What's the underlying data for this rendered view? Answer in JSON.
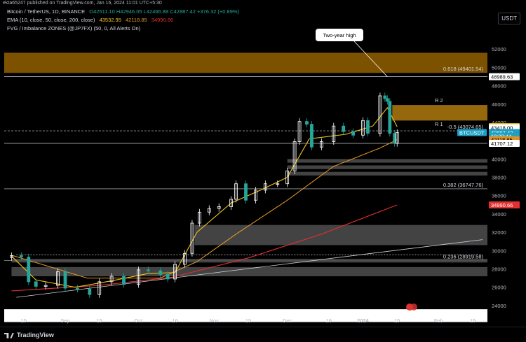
{
  "header": {
    "publish_line": "ekta65247 published on TradingView.com, Jan 16, 2024 11:01 UTC+5:30",
    "symbol": "Bitcoin / TetherUS, 1D, BINANCE",
    "ohlc": "O42511.10 H42946.05 L42466.88 C42887.42 +376.32 (+0.89%)",
    "ema_label": "EMA (10, close, 50, close, 200, close)",
    "ema_values": [
      "43532.95",
      "42118.85",
      "34990.66"
    ],
    "fvg_label": "FVG / Imbalance ZONES (@JP7FX) (50, 0, All Alerts On)",
    "currency": "USDT"
  },
  "footer": {
    "logo_text": "TradingView"
  },
  "colors": {
    "background": "#000000",
    "ema10": "#f0c419",
    "ema50": "#d9932a",
    "ema200": "#e03030",
    "up_candle": "#ffffff",
    "down_candle": "#26a69a",
    "fib_zone": "#8a5a00",
    "r2_zone": "#b07a10",
    "gray_zone": "#4a4a4a",
    "last_price_label": "#1e9fc4"
  },
  "chart_data": {
    "type": "candlestick",
    "ylim": [
      23000,
      54000
    ],
    "yticks": [
      24000,
      26000,
      28000,
      30000,
      32000,
      34000,
      36000,
      38000,
      40000,
      42000,
      44000,
      46000,
      48000,
      50000,
      52000
    ],
    "x_tick_labels": [
      "15",
      "Sep",
      "15",
      "Oct",
      "16",
      "Nov",
      "15",
      "Dec",
      "18",
      "2024",
      "15",
      "Feb",
      "15"
    ],
    "x_tick_dates": [
      "2023-08-15",
      "2023-09-01",
      "2023-09-15",
      "2023-10-01",
      "2023-10-16",
      "2023-11-01",
      "2023-11-15",
      "2023-12-01",
      "2023-12-18",
      "2024-01-01",
      "2024-01-15",
      "2024-02-01",
      "2024-02-15"
    ],
    "closes": [
      {
        "date": "2023-08-10",
        "close": 29450
      },
      {
        "date": "2023-08-14",
        "close": 29300
      },
      {
        "date": "2023-08-17",
        "close": 26600
      },
      {
        "date": "2023-08-20",
        "close": 26100
      },
      {
        "date": "2023-08-24",
        "close": 26200
      },
      {
        "date": "2023-08-29",
        "close": 27700
      },
      {
        "date": "2023-09-01",
        "close": 25900
      },
      {
        "date": "2023-09-06",
        "close": 25800
      },
      {
        "date": "2023-09-11",
        "close": 25200
      },
      {
        "date": "2023-09-15",
        "close": 26600
      },
      {
        "date": "2023-09-20",
        "close": 27200
      },
      {
        "date": "2023-09-25",
        "close": 26300
      },
      {
        "date": "2023-10-01",
        "close": 27900
      },
      {
        "date": "2023-10-05",
        "close": 27800
      },
      {
        "date": "2023-10-10",
        "close": 27400
      },
      {
        "date": "2023-10-13",
        "close": 26900
      },
      {
        "date": "2023-10-16",
        "close": 28500
      },
      {
        "date": "2023-10-20",
        "close": 29700
      },
      {
        "date": "2023-10-23",
        "close": 33000
      },
      {
        "date": "2023-10-26",
        "close": 34200
      },
      {
        "date": "2023-10-30",
        "close": 34600
      },
      {
        "date": "2023-11-03",
        "close": 34800
      },
      {
        "date": "2023-11-08",
        "close": 35600
      },
      {
        "date": "2023-11-10",
        "close": 37300
      },
      {
        "date": "2023-11-14",
        "close": 35500
      },
      {
        "date": "2023-11-18",
        "close": 36600
      },
      {
        "date": "2023-11-22",
        "close": 37300
      },
      {
        "date": "2023-11-27",
        "close": 37300
      },
      {
        "date": "2023-12-01",
        "close": 38700
      },
      {
        "date": "2023-12-04",
        "close": 41900
      },
      {
        "date": "2023-12-06",
        "close": 44100
      },
      {
        "date": "2023-12-09",
        "close": 43800
      },
      {
        "date": "2023-12-11",
        "close": 41300
      },
      {
        "date": "2023-12-15",
        "close": 41900
      },
      {
        "date": "2023-12-20",
        "close": 43600
      },
      {
        "date": "2023-12-24",
        "close": 43000
      },
      {
        "date": "2023-12-28",
        "close": 42600
      },
      {
        "date": "2024-01-01",
        "close": 44200
      },
      {
        "date": "2024-01-03",
        "close": 42800
      },
      {
        "date": "2024-01-08",
        "close": 46900
      },
      {
        "date": "2024-01-10",
        "close": 46600
      },
      {
        "date": "2024-01-11",
        "close": 46300
      },
      {
        "date": "2024-01-12",
        "close": 42800
      },
      {
        "date": "2024-01-14",
        "close": 41700
      },
      {
        "date": "2024-01-15",
        "close": 42887
      }
    ],
    "ema10": [
      {
        "date": "2023-08-10",
        "v": 29400
      },
      {
        "date": "2023-08-20",
        "v": 26800
      },
      {
        "date": "2023-09-05",
        "v": 26000
      },
      {
        "date": "2023-09-20",
        "v": 26700
      },
      {
        "date": "2023-10-05",
        "v": 27500
      },
      {
        "date": "2023-10-16",
        "v": 27600
      },
      {
        "date": "2023-10-25",
        "v": 32000
      },
      {
        "date": "2023-11-08",
        "v": 35200
      },
      {
        "date": "2023-11-20",
        "v": 36600
      },
      {
        "date": "2023-12-01",
        "v": 38000
      },
      {
        "date": "2023-12-10",
        "v": 42200
      },
      {
        "date": "2023-12-25",
        "v": 42700
      },
      {
        "date": "2024-01-05",
        "v": 43600
      },
      {
        "date": "2024-01-11",
        "v": 45600
      },
      {
        "date": "2024-01-15",
        "v": 43533
      }
    ],
    "ema50": [
      {
        "date": "2023-08-10",
        "v": 29500
      },
      {
        "date": "2023-09-10",
        "v": 27000
      },
      {
        "date": "2023-10-10",
        "v": 27000
      },
      {
        "date": "2023-10-25",
        "v": 28800
      },
      {
        "date": "2023-11-10",
        "v": 31800
      },
      {
        "date": "2023-12-01",
        "v": 35500
      },
      {
        "date": "2023-12-20",
        "v": 39200
      },
      {
        "date": "2024-01-08",
        "v": 41200
      },
      {
        "date": "2024-01-15",
        "v": 42119
      }
    ],
    "ema200": [
      {
        "date": "2023-08-10",
        "v": 25600
      },
      {
        "date": "2023-09-15",
        "v": 26200
      },
      {
        "date": "2023-10-15",
        "v": 27100
      },
      {
        "date": "2023-11-15",
        "v": 29200
      },
      {
        "date": "2023-12-15",
        "v": 31800
      },
      {
        "date": "2024-01-15",
        "v": 34991
      }
    ],
    "trendlines": [
      {
        "from": {
          "date": "2023-08-12",
          "v": 24900
        },
        "to": {
          "date": "2024-02-19",
          "v": 31200
        }
      },
      {
        "from": {
          "date": "2023-08-12",
          "v": 29550
        },
        "to": {
          "date": "2024-02-19",
          "v": 29550
        }
      }
    ],
    "fib_levels": [
      {
        "label": "0.618 (49401.54)",
        "y1": 49401.54,
        "y2": 51600,
        "color": "#8a5a00"
      },
      {
        "label": "-0.5 (43074.65)",
        "y1": 43074.65,
        "y2": 43074.65,
        "dashed": true
      },
      {
        "label": "0.382 (36747.76)",
        "y1": 36747.76,
        "y2": 36747.76
      },
      {
        "label": "0.236 (28919.58)",
        "y1": 28919.58,
        "y2": 28919.58
      }
    ],
    "r_zones": [
      {
        "label": "R 2",
        "y1": 44200,
        "y2": 45900,
        "from": "2024-01-13"
      },
      {
        "label": "R 1",
        "y1": 43074.65,
        "y2": 43074.65,
        "from": "2023-08-10"
      }
    ],
    "gray_zones": [
      {
        "y1": 39600,
        "y2": 40000,
        "from": "2023-12-01"
      },
      {
        "y1": 38900,
        "y2": 39300,
        "from": "2023-12-01"
      },
      {
        "y1": 38200,
        "y2": 38600,
        "from": "2023-12-01"
      },
      {
        "y1": 30600,
        "y2": 32800,
        "from": "2023-10-24"
      },
      {
        "y1": 28700,
        "y2": 29100,
        "from": "2023-08-10"
      },
      {
        "y1": 27200,
        "y2": 28200,
        "from": "2023-08-10"
      }
    ],
    "price_labels": [
      {
        "value": "48989.63",
        "y": 48989.63,
        "bg": "#ffffff",
        "fg": "#000000"
      },
      {
        "value": "43532.95",
        "y": 43532.95,
        "bg": "#f0c419",
        "fg": "#000000"
      },
      {
        "value": "43418.00",
        "y": 43418,
        "bg": "#ffffff",
        "fg": "#000000"
      },
      {
        "value": "42887.42",
        "y": 42887.42,
        "bg": "#1e9fc4",
        "fg": "#ffffff"
      },
      {
        "value": "18:28:44",
        "y": 42500,
        "bg": "#1e9fc4",
        "fg": "#ffffff"
      },
      {
        "value": "42118.85",
        "y": 42118.85,
        "bg": "#d9932a",
        "fg": "#000000"
      },
      {
        "value": "41707.12",
        "y": 41707.12,
        "bg": "#ffffff",
        "fg": "#000000"
      },
      {
        "value": "34990.66",
        "y": 34990.66,
        "bg": "#e03030",
        "fg": "#ffffff"
      }
    ],
    "symbol_tag": "BTCUSDT",
    "annotation": {
      "text": "Two-year high",
      "date": "2024-01-11",
      "v": 48990
    }
  }
}
